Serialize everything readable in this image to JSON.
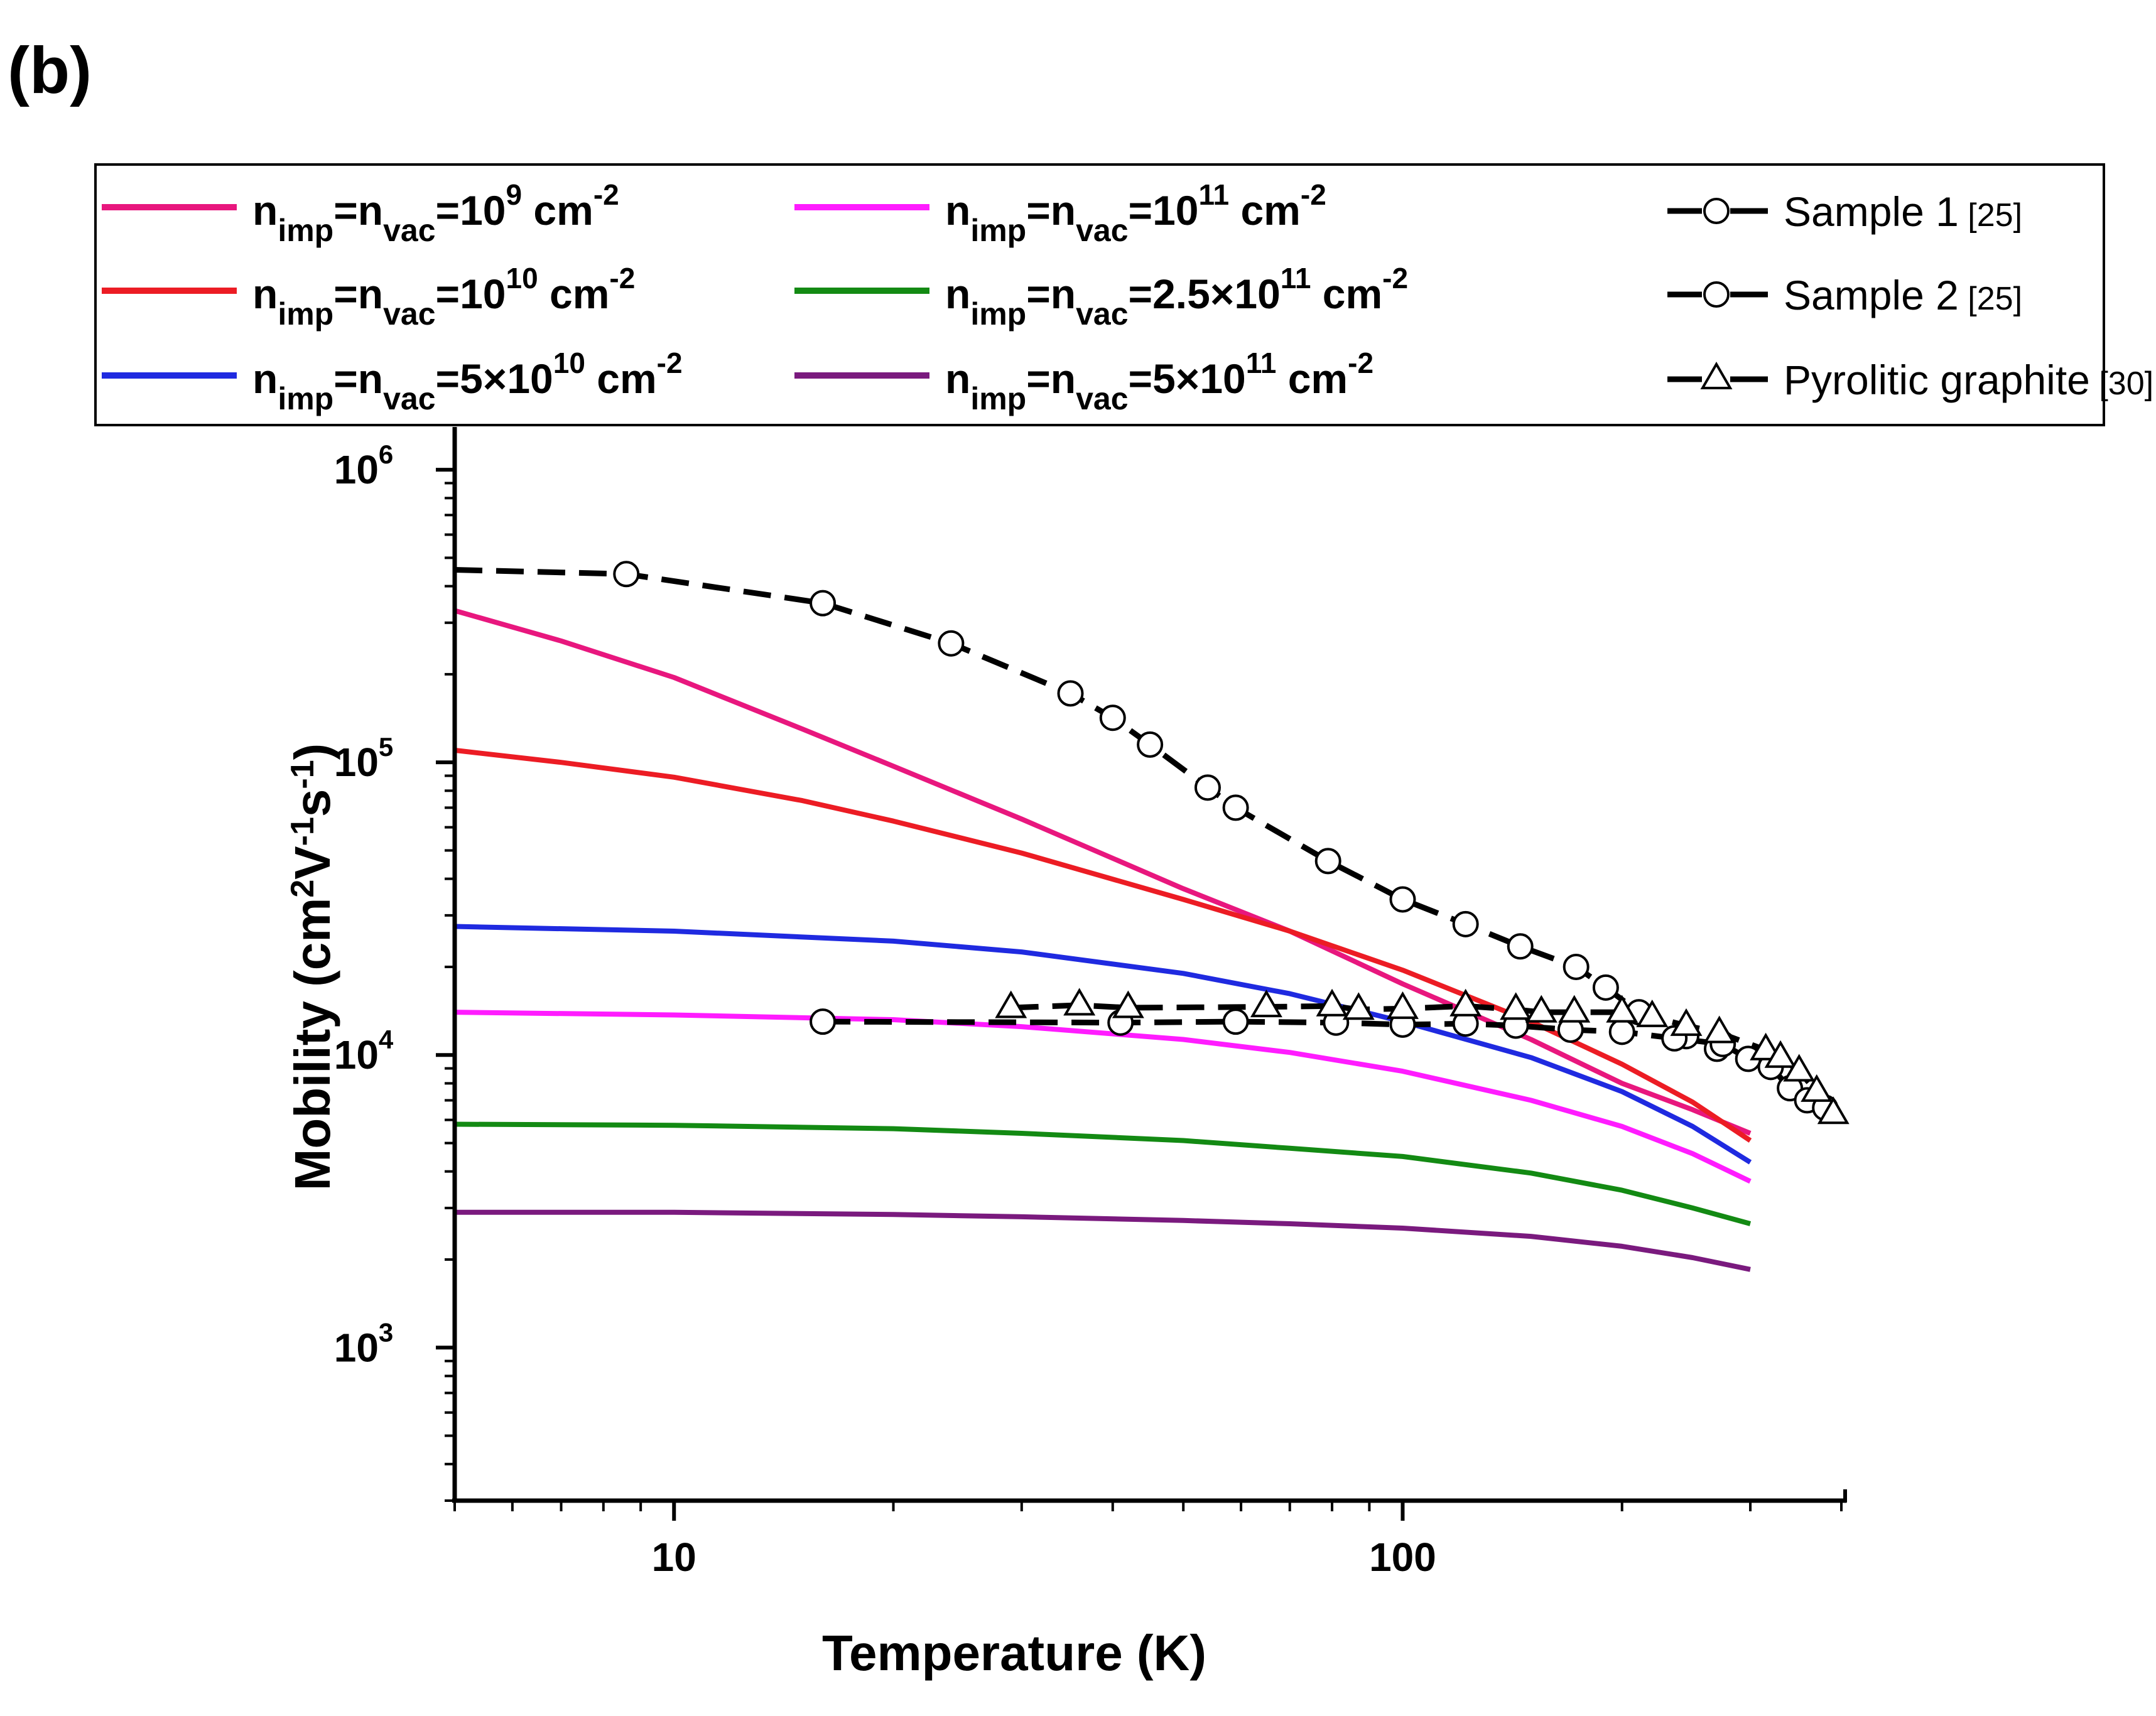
{
  "chart_data": {
    "type": "line",
    "panel_label": "(b)",
    "xlabel": {
      "main": "Temperature (K)"
    },
    "ylabel": {
      "prefix": "Mobility (cm",
      "sup1": "2",
      "mid1": "V",
      "sup2": "-1",
      "mid2": "s",
      "sup3": "-1",
      "suffix": ")"
    },
    "xscale": "log",
    "yscale": "log",
    "xlim": [
      5,
      400
    ],
    "ylim": [
      300,
      1400000
    ],
    "x_ticks": [
      {
        "value": 10,
        "label": "10"
      },
      {
        "value": 100,
        "label": "100"
      }
    ],
    "y_ticks": [
      {
        "value": 1000,
        "base": "10",
        "exp": "3"
      },
      {
        "value": 10000,
        "base": "10",
        "exp": "4"
      },
      {
        "value": 100000,
        "base": "10",
        "exp": "5"
      },
      {
        "value": 1000000,
        "base": "10",
        "exp": "6"
      }
    ],
    "legend_position": "top",
    "series": [
      {
        "name": "n_imp=n_vac=10^9 cm^-2",
        "color": "#E8177E",
        "style": "solid",
        "label": {
          "n": "n",
          "sub1": "imp",
          "eq": "=n",
          "sub2": "vac",
          "val": "=10",
          "valsup": "9",
          "unit": " cm",
          "unitsup": "-2"
        },
        "x": [
          5,
          7,
          10,
          15,
          20,
          30,
          50,
          70,
          100,
          150,
          200,
          250,
          300
        ],
        "y": [
          330000,
          260000,
          195000,
          130000,
          97000,
          64000,
          37000,
          26500,
          17500,
          11300,
          8000,
          6500,
          5400
        ]
      },
      {
        "name": "n_imp=n_vac=10^10 cm^-2",
        "color": "#EC1C24",
        "style": "solid",
        "label": {
          "n": "n",
          "sub1": "imp",
          "eq": "=n",
          "sub2": "vac",
          "val": "=10",
          "valsup": "10",
          "unit": " cm",
          "unitsup": "-2"
        },
        "x": [
          5,
          7,
          10,
          15,
          20,
          30,
          50,
          70,
          100,
          150,
          200,
          250,
          300
        ],
        "y": [
          110000,
          100000,
          89000,
          74000,
          63000,
          49000,
          34000,
          26500,
          19500,
          13000,
          9300,
          6900,
          5100
        ]
      },
      {
        "name": "n_imp=n_vac=5x10^10 cm^-2",
        "color": "#1F2AE0",
        "style": "solid",
        "label": {
          "n": "n",
          "sub1": "imp",
          "eq": "=n",
          "sub2": "vac",
          "val": "=5×10",
          "valsup": "10",
          "unit": " cm",
          "unitsup": "-2"
        },
        "x": [
          5,
          10,
          20,
          30,
          50,
          70,
          100,
          150,
          200,
          250,
          300
        ],
        "y": [
          27500,
          26500,
          24500,
          22500,
          19000,
          16200,
          13000,
          9800,
          7500,
          5700,
          4300
        ]
      },
      {
        "name": "n_imp=n_vac=10^11 cm^-2",
        "color": "#FF1CFF",
        "style": "solid",
        "label": {
          "n": "n",
          "sub1": "imp",
          "eq": "=n",
          "sub2": "vac",
          "val": "=10",
          "valsup": "11",
          "unit": " cm",
          "unitsup": "-2"
        },
        "x": [
          5,
          10,
          20,
          30,
          50,
          70,
          100,
          150,
          200,
          250,
          300
        ],
        "y": [
          14000,
          13700,
          13200,
          12500,
          11300,
          10200,
          8800,
          7000,
          5700,
          4600,
          3700
        ]
      },
      {
        "name": "n_imp=n_vac=2.5x10^11 cm^-2",
        "color": "#138A13",
        "style": "solid",
        "label": {
          "n": "n",
          "sub1": "imp",
          "eq": "=n",
          "sub2": "vac",
          "val": "=2.5×10",
          "valsup": "11",
          "unit": " cm",
          "unitsup": "-2"
        },
        "x": [
          5,
          10,
          20,
          30,
          50,
          70,
          100,
          150,
          200,
          250,
          300
        ],
        "y": [
          5800,
          5750,
          5600,
          5400,
          5100,
          4800,
          4500,
          3950,
          3450,
          3000,
          2650
        ]
      },
      {
        "name": "n_imp=n_vac=5x10^11 cm^-2",
        "color": "#7A1A7E",
        "style": "solid",
        "label": {
          "n": "n",
          "sub1": "imp",
          "eq": "=n",
          "sub2": "vac",
          "val": "=5×10",
          "valsup": "11",
          "unit": " cm",
          "unitsup": "-2"
        },
        "x": [
          5,
          10,
          20,
          30,
          50,
          70,
          100,
          150,
          200,
          250,
          300
        ],
        "y": [
          2900,
          2900,
          2850,
          2800,
          2720,
          2650,
          2560,
          2400,
          2220,
          2030,
          1850
        ]
      },
      {
        "name": "Sample 1",
        "ref": "[25]",
        "color": "#000000",
        "style": "dashed",
        "marker": "circle",
        "x": [
          8.6,
          16,
          24,
          35,
          40,
          45,
          54,
          59,
          79,
          100,
          122,
          145,
          173,
          190,
          211,
          245,
          270
        ],
        "y": [
          440000,
          350000,
          255000,
          172000,
          142000,
          115000,
          82000,
          70000,
          46000,
          34000,
          28000,
          23500,
          20000,
          17000,
          14000,
          11600,
          10500
        ]
      },
      {
        "name": "Sample 2",
        "ref": "[25]",
        "color": "#000000",
        "style": "dashed",
        "marker": "circle",
        "x": [
          16,
          41,
          59,
          81,
          100,
          122,
          143,
          170,
          200,
          236,
          275,
          298,
          320,
          340,
          359,
          380
        ],
        "y": [
          13000,
          12900,
          13000,
          12900,
          12700,
          12800,
          12600,
          12200,
          12000,
          11400,
          10900,
          9700,
          9100,
          7700,
          7000,
          6600
        ]
      },
      {
        "name": "Pyrolitic graphite",
        "ref": "[30]",
        "color": "#000000",
        "style": "dashed",
        "marker": "triangle",
        "x": [
          29,
          36,
          42,
          65,
          80,
          87,
          100,
          122,
          143,
          155,
          172,
          200,
          220,
          245,
          272,
          315,
          330,
          350,
          370,
          390
        ],
        "y": [
          14500,
          14800,
          14500,
          14600,
          14700,
          14300,
          14400,
          14700,
          14300,
          14000,
          14000,
          14000,
          13500,
          12600,
          11900,
          10400,
          9800,
          8800,
          7500,
          6300
        ]
      }
    ]
  }
}
